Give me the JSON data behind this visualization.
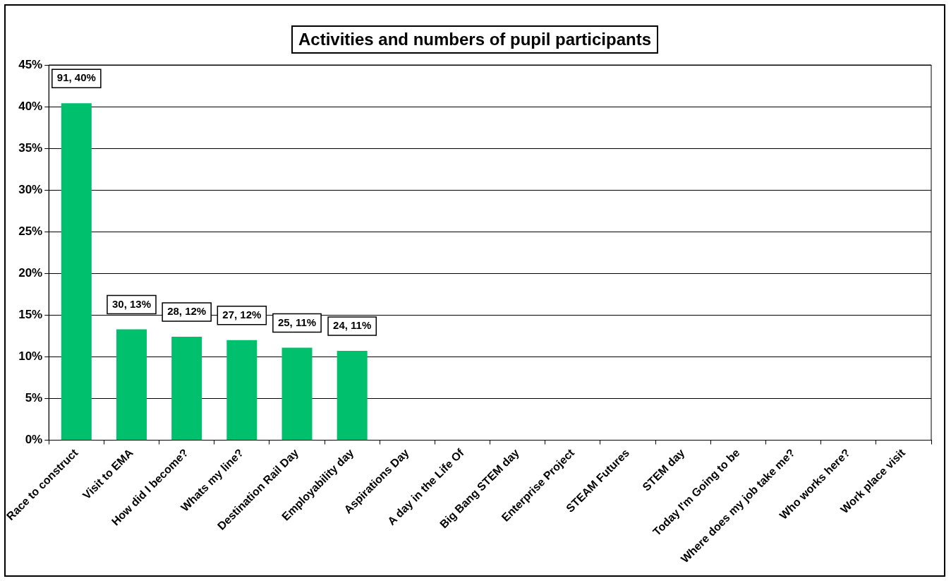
{
  "chart_data": {
    "type": "bar",
    "title": "Activities and numbers of pupil participants",
    "categories": [
      "Race to construct",
      "Visit to EMA",
      "How did I become?",
      "Whats my line?",
      "Destination Rail Day",
      "Employability day",
      "Aspirations Day",
      "A day in the Life Of",
      "Big Bang STEM day",
      "Enterprise Project",
      "STEAM Futures",
      "STEM day",
      "Today I'm Going to be",
      "Where does my job take me?",
      "Who works here?",
      "Work place visit"
    ],
    "values": [
      40.4,
      13.3,
      12.4,
      12.0,
      11.1,
      10.7,
      0,
      0,
      0,
      0,
      0,
      0,
      0,
      0,
      0,
      0
    ],
    "value_labels": [
      "91, 40%",
      "30, 13%",
      "28, 12%",
      "27, 12%",
      "25, 11%",
      "24, 11%",
      null,
      null,
      null,
      null,
      null,
      null,
      null,
      null,
      null,
      null
    ],
    "color": "#00c06e",
    "ylim": [
      0,
      45
    ],
    "yticks": [
      {
        "value": 0,
        "label": "0%"
      },
      {
        "value": 5,
        "label": "5%"
      },
      {
        "value": 10,
        "label": "10%"
      },
      {
        "value": 15,
        "label": "15%"
      },
      {
        "value": 20,
        "label": "20%"
      },
      {
        "value": 25,
        "label": "25%"
      },
      {
        "value": 30,
        "label": "30%"
      },
      {
        "value": 35,
        "label": "35%"
      },
      {
        "value": 40,
        "label": "40%"
      },
      {
        "value": 45,
        "label": "45%"
      }
    ],
    "grid": "y",
    "legend": false
  }
}
